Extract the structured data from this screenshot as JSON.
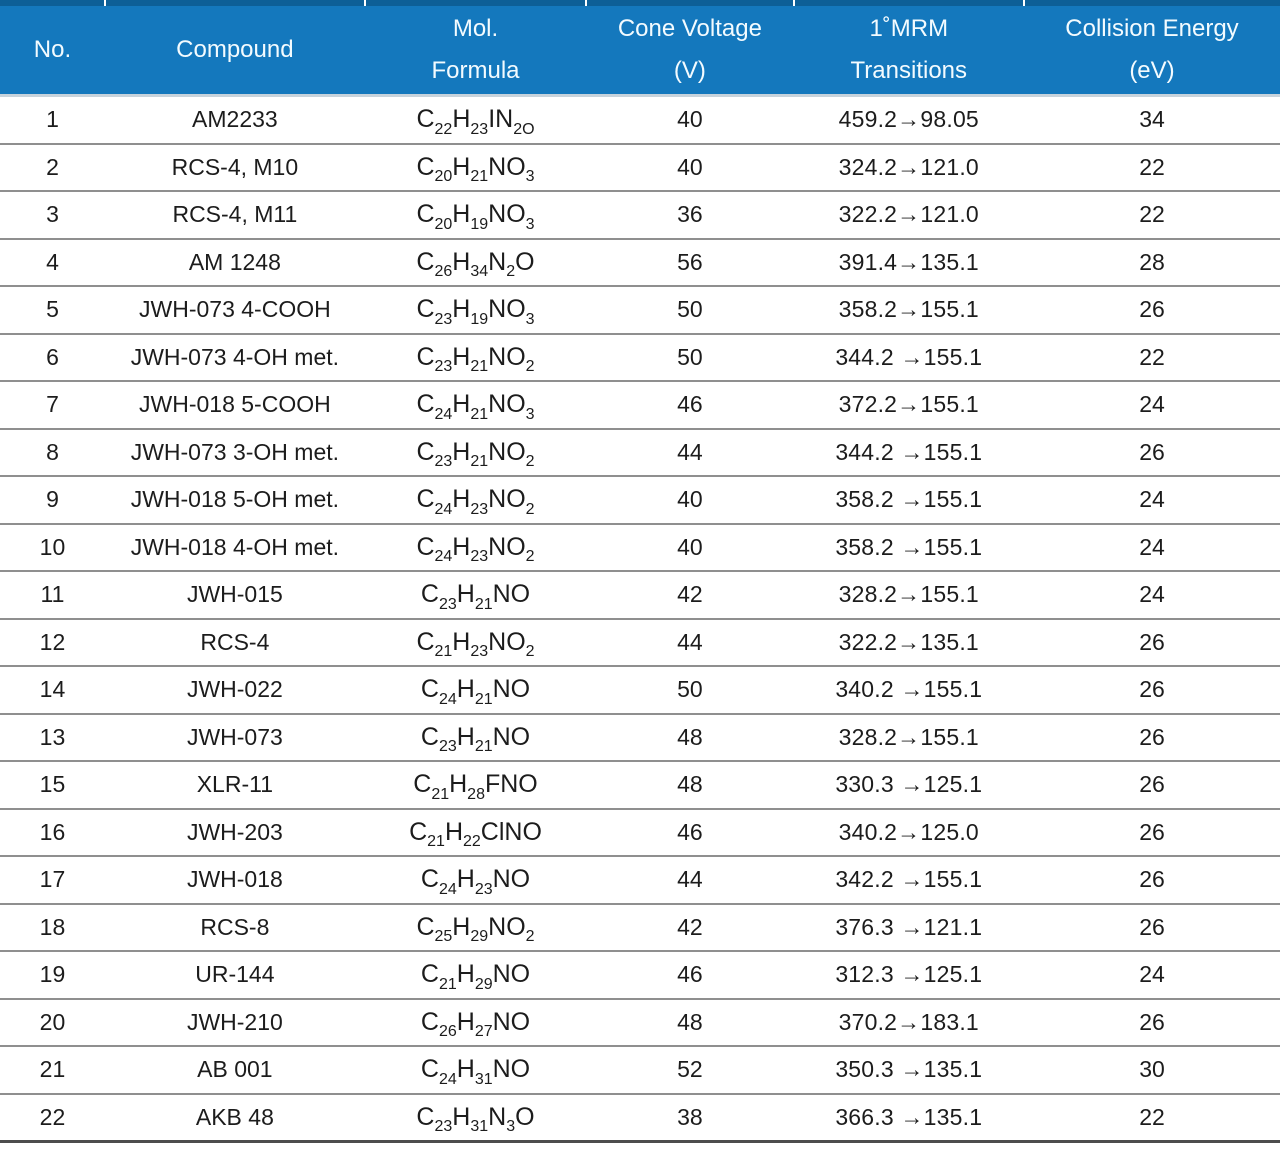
{
  "colors": {
    "header_bg": "#1478bd",
    "header_top": "#0d5f97",
    "header_text": "#f3fbff",
    "row_border": "#8f8f8f",
    "bottom_border": "#4d4d4d",
    "body_text": "#1c1c1c"
  },
  "header": {
    "columns": [
      {
        "line1": "No.",
        "line2": ""
      },
      {
        "line1": "Compound",
        "line2": ""
      },
      {
        "line1": "Mol.",
        "line2": "Formula"
      },
      {
        "line1": "Cone Voltage",
        "line2": "(V)"
      },
      {
        "line1": "1˚MRM",
        "line2": "Transitions"
      },
      {
        "line1": "Collision Energy",
        "line2": "(eV)"
      }
    ]
  },
  "rows": [
    {
      "no": "1",
      "compound": "AM2233",
      "formula": [
        [
          "C",
          "22"
        ],
        [
          "H",
          "23"
        ],
        [
          "IN",
          "2O"
        ]
      ],
      "cone": "40",
      "mrm": "459.2→98.05",
      "ce": "34"
    },
    {
      "no": "2",
      "compound": "RCS-4, M10",
      "formula": [
        [
          "C",
          "20"
        ],
        [
          "H",
          "21"
        ],
        [
          "NO",
          "3"
        ]
      ],
      "cone": "40",
      "mrm": "324.2→121.0",
      "ce": "22"
    },
    {
      "no": "3",
      "compound": "RCS-4, M11",
      "formula": [
        [
          "C",
          "20"
        ],
        [
          "H",
          "19"
        ],
        [
          "NO",
          "3"
        ]
      ],
      "cone": "36",
      "mrm": "322.2→121.0",
      "ce": "22"
    },
    {
      "no": "4",
      "compound": "AM 1248",
      "formula": [
        [
          "C",
          "26"
        ],
        [
          "H",
          "34"
        ],
        [
          "N",
          "2"
        ],
        [
          "O",
          ""
        ]
      ],
      "cone": "56",
      "mrm": "391.4→135.1",
      "ce": "28"
    },
    {
      "no": "5",
      "compound": "JWH-073 4-COOH",
      "formula": [
        [
          "C",
          "23"
        ],
        [
          "H",
          "19"
        ],
        [
          "NO",
          "3"
        ]
      ],
      "cone": "50",
      "mrm": "358.2→155.1",
      "ce": "26"
    },
    {
      "no": "6",
      "compound": "JWH-073 4-OH met.",
      "formula": [
        [
          "C",
          "23"
        ],
        [
          "H",
          "21"
        ],
        [
          "NO",
          "2"
        ]
      ],
      "cone": "50",
      "mrm": "344.2 →155.1",
      "ce": "22"
    },
    {
      "no": "7",
      "compound": "JWH-018 5-COOH",
      "formula": [
        [
          "C",
          "24"
        ],
        [
          "H",
          "21"
        ],
        [
          "NO",
          "3"
        ]
      ],
      "cone": "46",
      "mrm": "372.2→155.1",
      "ce": "24"
    },
    {
      "no": "8",
      "compound": "JWH-073 3-OH met.",
      "formula": [
        [
          "C",
          "23"
        ],
        [
          "H",
          "21"
        ],
        [
          "NO",
          "2"
        ]
      ],
      "cone": "44",
      "mrm": "344.2 →155.1",
      "ce": "26"
    },
    {
      "no": "9",
      "compound": "JWH-018 5-OH met.",
      "formula": [
        [
          "C",
          "24"
        ],
        [
          "H",
          "23"
        ],
        [
          "NO",
          "2"
        ]
      ],
      "cone": "40",
      "mrm": "358.2 →155.1",
      "ce": "24"
    },
    {
      "no": "10",
      "compound": "JWH-018 4-OH met.",
      "formula": [
        [
          "C",
          "24"
        ],
        [
          "H",
          "23"
        ],
        [
          "NO",
          "2"
        ]
      ],
      "cone": "40",
      "mrm": "358.2 →155.1",
      "ce": "24"
    },
    {
      "no": "11",
      "compound": "JWH-015",
      "formula": [
        [
          "C",
          "23"
        ],
        [
          "H",
          "21"
        ],
        [
          "NO",
          ""
        ]
      ],
      "cone": "42",
      "mrm": "328.2→155.1",
      "ce": "24"
    },
    {
      "no": "12",
      "compound": "RCS-4",
      "formula": [
        [
          "C",
          "21"
        ],
        [
          "H",
          "23"
        ],
        [
          "NO",
          "2"
        ]
      ],
      "cone": "44",
      "mrm": "322.2→135.1",
      "ce": "26"
    },
    {
      "no": "14",
      "compound": "JWH-022",
      "formula": [
        [
          "C",
          "24"
        ],
        [
          "H",
          "21"
        ],
        [
          "NO",
          ""
        ]
      ],
      "cone": "50",
      "mrm": "340.2 →155.1",
      "ce": "26"
    },
    {
      "no": "13",
      "compound": "JWH-073",
      "formula": [
        [
          "C",
          "23"
        ],
        [
          "H",
          "21"
        ],
        [
          "NO",
          ""
        ]
      ],
      "cone": "48",
      "mrm": "328.2→155.1",
      "ce": "26"
    },
    {
      "no": "15",
      "compound": "XLR-11",
      "formula": [
        [
          "C",
          "21"
        ],
        [
          "H",
          "28"
        ],
        [
          "FNO",
          ""
        ]
      ],
      "cone": "48",
      "mrm": "330.3 →125.1",
      "ce": "26"
    },
    {
      "no": "16",
      "compound": "JWH-203",
      "formula": [
        [
          "C",
          "21"
        ],
        [
          "H",
          "22"
        ],
        [
          "ClNO",
          ""
        ]
      ],
      "cone": "46",
      "mrm": "340.2→125.0",
      "ce": "26"
    },
    {
      "no": "17",
      "compound": "JWH-018",
      "formula": [
        [
          "C",
          "24"
        ],
        [
          "H",
          "23"
        ],
        [
          "NO",
          ""
        ]
      ],
      "cone": "44",
      "mrm": "342.2 →155.1",
      "ce": "26"
    },
    {
      "no": "18",
      "compound": "RCS-8",
      "formula": [
        [
          "C",
          "25"
        ],
        [
          "H",
          "29"
        ],
        [
          "NO",
          "2"
        ]
      ],
      "cone": "42",
      "mrm": "376.3 →121.1",
      "ce": "26"
    },
    {
      "no": "19",
      "compound": "UR-144",
      "formula": [
        [
          "C",
          "21"
        ],
        [
          "H",
          "29"
        ],
        [
          "NO",
          ""
        ]
      ],
      "cone": "46",
      "mrm": "312.3 →125.1",
      "ce": "24"
    },
    {
      "no": "20",
      "compound": "JWH-210",
      "formula": [
        [
          "C",
          "26"
        ],
        [
          "H",
          "27"
        ],
        [
          "NO",
          ""
        ]
      ],
      "cone": "48",
      "mrm": "370.2→183.1",
      "ce": "26"
    },
    {
      "no": "21",
      "compound": "AB 001",
      "formula": [
        [
          "C",
          "24"
        ],
        [
          "H",
          "31"
        ],
        [
          "NO",
          ""
        ]
      ],
      "cone": "52",
      "mrm": "350.3 →135.1",
      "ce": "30"
    },
    {
      "no": "22",
      "compound": "AKB 48",
      "formula": [
        [
          "C",
          "23"
        ],
        [
          "H",
          "31"
        ],
        [
          "N",
          "3"
        ],
        [
          "O",
          ""
        ]
      ],
      "cone": "38",
      "mrm": "366.3 →135.1",
      "ce": "22"
    }
  ]
}
